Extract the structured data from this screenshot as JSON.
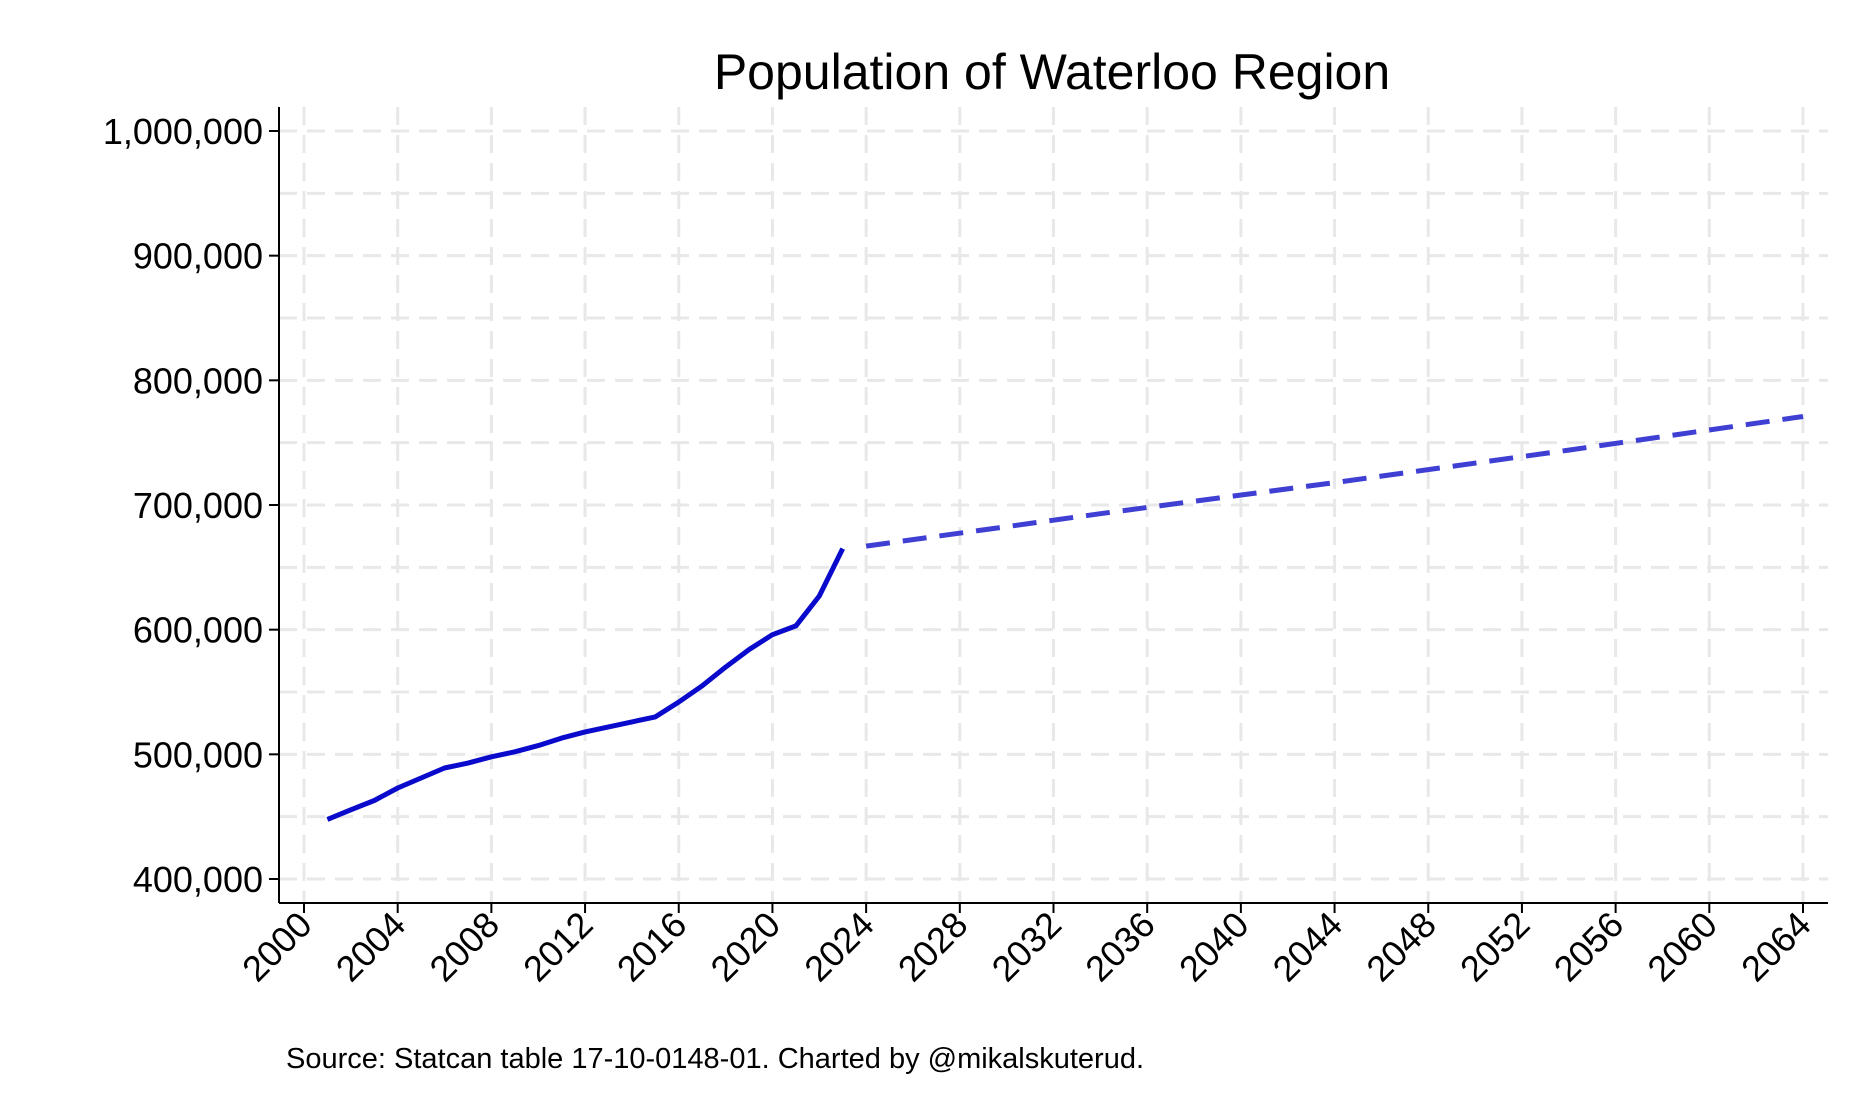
{
  "chart_data": {
    "type": "line",
    "title": "Population of Waterloo Region",
    "source_note": "Source: Statcan table 17-10-0148-01. Charted by @mikalskuterud.",
    "xlabel": "",
    "ylabel": "",
    "xlim": [
      2000,
      2064
    ],
    "ylim": [
      400000,
      1000000
    ],
    "x_ticks": [
      "2000",
      "2004",
      "2008",
      "2012",
      "2016",
      "2020",
      "2024",
      "2028",
      "2032",
      "2036",
      "2040",
      "2044",
      "2048",
      "2052",
      "2056",
      "2060",
      "2064"
    ],
    "y_ticks": [
      "400,000",
      "500,000",
      "600,000",
      "700,000",
      "800,000",
      "900,000",
      "1,000,000"
    ],
    "grid": true,
    "series": [
      {
        "style": "solid",
        "color": "#0a0acc",
        "x": [
          2001,
          2002,
          2003,
          2004,
          2005,
          2006,
          2007,
          2008,
          2009,
          2010,
          2011,
          2012,
          2013,
          2014,
          2015,
          2016,
          2017,
          2018,
          2019,
          2020,
          2021,
          2022,
          2023
        ],
        "y": [
          447800,
          455500,
          463000,
          473000,
          481000,
          489000,
          493000,
          498000,
          502000,
          507000,
          513000,
          518000,
          522000,
          526000,
          530000,
          542000,
          555000,
          570000,
          584000,
          596000,
          603000,
          627000,
          665000
        ]
      },
      {
        "style": "dashed",
        "color": "#3f3fd4",
        "x": [
          2024,
          2034,
          2044,
          2054,
          2064
        ],
        "y": [
          667000,
          693000,
          718000,
          744000,
          771000
        ]
      }
    ]
  }
}
